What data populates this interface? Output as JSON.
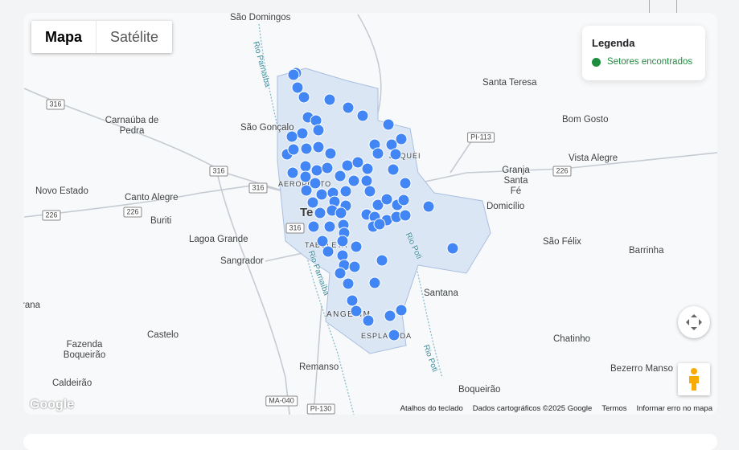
{
  "map_type": {
    "options": [
      "Mapa",
      "Satélite"
    ],
    "selected": "Mapa"
  },
  "legend": {
    "title": "Legenda",
    "items": [
      {
        "label": "Setores encontrados",
        "color": "#1e8e3e"
      }
    ]
  },
  "marker_color": "#4285f4",
  "places": [
    "São Domingos",
    "Carnaúba de Pedra",
    "São Gonçalo",
    "Santa Teresa",
    "Bom Gosto",
    "Vista Alegre",
    "Granja Santa Fé",
    "Domicílio",
    "Novo Estado",
    "Canto Alegre",
    "Buriti",
    "Lagoa Grande",
    "Sangrador",
    "São Félix",
    "Barrinha",
    "Santana",
    "Chatinho",
    "Castelo",
    "Fazenda Boqueirão",
    "Remanso",
    "Bezerro Manso",
    "Boqueirão",
    "Caldeirão",
    "rana",
    "Te",
    "AEROPORTO",
    "JOQUEI",
    "TABULETA",
    "ANGELIM",
    "ESPLANADA"
  ],
  "roads": [
    "316",
    "316",
    "316",
    "226",
    "226",
    "226",
    "PI-113",
    "316",
    "MA-040",
    "PI-130"
  ],
  "rivers": [
    "Rio Parnaíba",
    "Rio Parnaíba",
    "Rio Poti",
    "Rio Poti"
  ],
  "footer": {
    "keyboard": "Atalhos do teclado",
    "data": "Dados cartográficos ©2025 Google",
    "terms": "Termos",
    "report": "Informar erro no mapa"
  },
  "logo": "Google"
}
